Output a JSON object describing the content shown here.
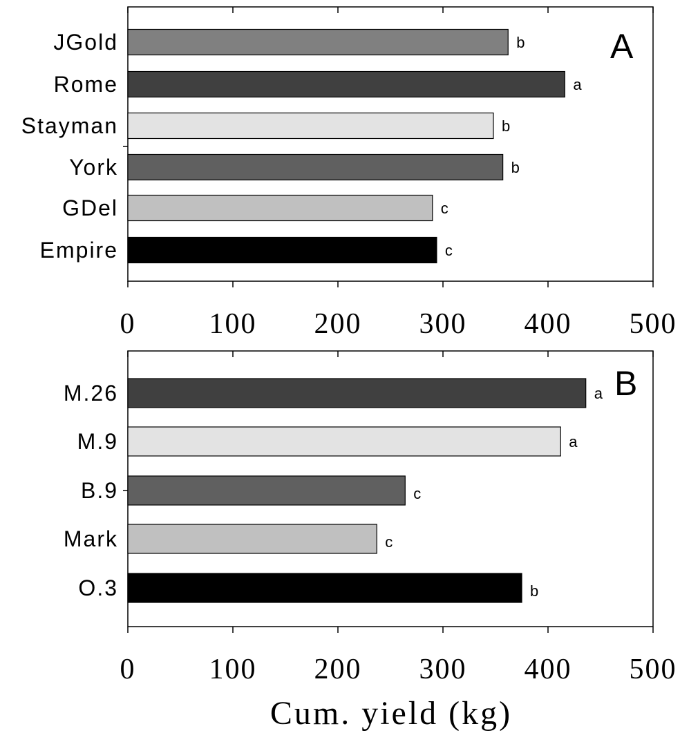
{
  "chart_data": [
    {
      "type": "bar",
      "orientation": "horizontal",
      "panel_label": "A",
      "categories": [
        "JGold",
        "Rome",
        "Stayman",
        "York",
        "GDel",
        "Empire"
      ],
      "values": [
        362,
        416,
        348,
        357,
        290,
        294
      ],
      "significance": [
        "b",
        "a",
        "b",
        "b",
        "c",
        "c"
      ],
      "colors": [
        "#808080",
        "#404040",
        "#e3e3e3",
        "#606060",
        "#c0c0c0",
        "#000000"
      ],
      "xlim": [
        0,
        500
      ],
      "xticks": [
        "0",
        "100",
        "200",
        "300",
        "400",
        "500"
      ],
      "grid": false
    },
    {
      "type": "bar",
      "orientation": "horizontal",
      "panel_label": "B",
      "categories": [
        "M.26",
        "M.9",
        "B.9",
        "Mark",
        "O.3"
      ],
      "values": [
        436,
        412,
        264,
        237,
        375
      ],
      "significance": [
        "a",
        "a",
        "c",
        "c",
        "b"
      ],
      "colors": [
        "#404040",
        "#e3e3e3",
        "#606060",
        "#c0c0c0",
        "#000000"
      ],
      "xlim": [
        0,
        500
      ],
      "xticks": [
        "0",
        "100",
        "200",
        "300",
        "400",
        "500"
      ],
      "xlabel": "Cum. yield (kg)",
      "grid": false
    }
  ]
}
